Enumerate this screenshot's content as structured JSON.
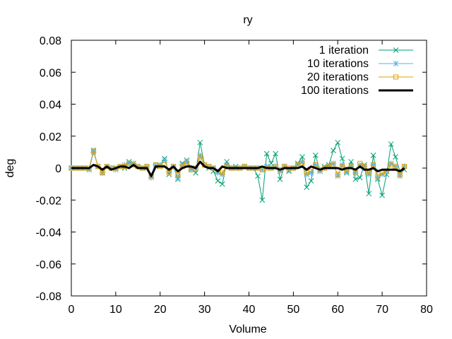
{
  "chart_data": {
    "type": "line",
    "title": "ry",
    "xlabel": "Volume",
    "ylabel": "deg",
    "xlim": [
      0,
      80
    ],
    "ylim": [
      -0.08,
      0.08
    ],
    "x_ticks": [
      "0",
      "10",
      "20",
      "30",
      "40",
      "50",
      "60",
      "70",
      "80"
    ],
    "y_ticks": [
      "-0.08",
      "-0.06",
      "-0.04",
      "-0.02",
      "0",
      "0.02",
      "0.04",
      "0.06",
      "0.08"
    ],
    "grid": false,
    "legend_position": "top-right",
    "x": [
      0,
      1,
      2,
      3,
      4,
      5,
      6,
      7,
      8,
      9,
      10,
      11,
      12,
      13,
      14,
      15,
      16,
      17,
      18,
      19,
      20,
      21,
      22,
      23,
      24,
      25,
      26,
      27,
      28,
      29,
      30,
      31,
      32,
      33,
      34,
      35,
      36,
      37,
      38,
      39,
      40,
      41,
      42,
      43,
      44,
      45,
      46,
      47,
      48,
      49,
      50,
      51,
      52,
      53,
      54,
      55,
      56,
      57,
      58,
      59,
      60,
      61,
      62,
      63,
      64,
      65,
      66,
      67,
      68,
      69,
      70,
      71,
      72,
      73,
      74,
      75
    ],
    "series": [
      {
        "name": "1 iteration",
        "color": "#009e73",
        "marker": "x",
        "values": [
          0.0,
          0.0,
          0.0,
          0.0,
          -0.001,
          0.011,
          0.001,
          -0.003,
          0.001,
          0.0,
          0.0,
          0.001,
          0.0,
          0.004,
          0.003,
          0.001,
          0.0,
          0.0,
          -0.005,
          0.001,
          0.002,
          0.006,
          -0.004,
          0.001,
          -0.007,
          0.003,
          0.005,
          0.0,
          -0.003,
          0.016,
          0.002,
          0.0,
          -0.002,
          -0.008,
          -0.01,
          0.004,
          0.0,
          0.001,
          0.0,
          0.001,
          0.0,
          0.0,
          -0.005,
          -0.02,
          0.009,
          0.003,
          0.009,
          -0.007,
          0.001,
          -0.002,
          0.0,
          0.003,
          0.007,
          -0.012,
          -0.008,
          0.008,
          -0.002,
          0.001,
          0.002,
          0.011,
          0.016,
          0.006,
          -0.003,
          0.004,
          -0.007,
          -0.006,
          0.002,
          -0.016,
          0.008,
          -0.007,
          -0.017,
          -0.004,
          0.015,
          0.007,
          -0.002,
          -0.001
        ]
      },
      {
        "name": "10 iterations",
        "color": "#56b4e9",
        "marker": "*",
        "values": [
          0.0,
          0.0,
          0.0,
          0.0,
          -0.001,
          0.01,
          0.001,
          -0.003,
          0.001,
          0.0,
          -0.001,
          0.001,
          0.002,
          0.003,
          0.003,
          0.001,
          0.0,
          0.001,
          -0.006,
          0.002,
          0.002,
          0.005,
          -0.002,
          0.001,
          -0.006,
          0.002,
          0.004,
          -0.001,
          0.0,
          0.008,
          0.002,
          0.001,
          0.0,
          -0.003,
          -0.004,
          0.002,
          0.0,
          0.0,
          0.0,
          0.001,
          0.0,
          0.0,
          0.0,
          -0.001,
          0.001,
          0.0,
          0.001,
          -0.002,
          0.001,
          -0.001,
          0.0,
          0.002,
          0.004,
          -0.004,
          -0.003,
          0.002,
          -0.002,
          0.0,
          0.001,
          0.003,
          -0.005,
          0.002,
          -0.002,
          0.001,
          -0.003,
          0.002,
          0.001,
          -0.004,
          0.002,
          -0.006,
          -0.004,
          -0.002,
          0.003,
          0.001,
          -0.005,
          0.001
        ]
      },
      {
        "name": "20 iterations",
        "color": "#e69f00",
        "marker": "square",
        "values": [
          0.0,
          0.0,
          0.0,
          0.0,
          0.0,
          0.011,
          0.001,
          -0.003,
          0.001,
          0.0,
          0.0,
          0.001,
          0.001,
          0.003,
          0.002,
          0.001,
          0.0,
          0.001,
          -0.005,
          0.002,
          0.001,
          0.002,
          -0.003,
          0.001,
          -0.004,
          0.001,
          0.003,
          -0.001,
          0.0,
          0.007,
          0.002,
          0.001,
          0.0,
          -0.002,
          -0.003,
          0.001,
          0.0,
          0.0,
          0.0,
          0.001,
          0.0,
          0.0,
          0.0,
          -0.001,
          0.0,
          0.0,
          0.001,
          -0.001,
          0.001,
          0.0,
          0.0,
          0.002,
          0.003,
          -0.003,
          -0.002,
          0.002,
          -0.001,
          0.0,
          0.001,
          0.002,
          -0.004,
          0.001,
          -0.002,
          0.001,
          -0.003,
          0.003,
          0.001,
          -0.003,
          0.002,
          -0.005,
          -0.003,
          -0.002,
          0.002,
          0.001,
          -0.004,
          0.001
        ]
      },
      {
        "name": "100 iterations",
        "color": "#000000",
        "marker": "none",
        "values": [
          0.0,
          0.0,
          0.0,
          0.0,
          0.0,
          0.002,
          0.001,
          -0.001,
          0.001,
          -0.001,
          0.0,
          0.001,
          0.001,
          0.0,
          0.002,
          0.0,
          0.0,
          0.0,
          -0.005,
          0.001,
          0.001,
          0.001,
          -0.001,
          0.001,
          -0.002,
          0.0,
          0.001,
          0.001,
          0.0,
          0.004,
          0.001,
          0.0,
          0.0,
          -0.002,
          0.001,
          0.0,
          0.0,
          0.0,
          0.0,
          0.0,
          0.0,
          0.0,
          0.0,
          0.001,
          0.0,
          0.0,
          0.0,
          -0.001,
          0.0,
          0.0,
          0.0,
          0.0,
          0.001,
          -0.001,
          0.001,
          0.0,
          -0.001,
          0.0,
          0.0,
          0.0,
          0.0,
          -0.001,
          0.0,
          0.0,
          -0.001,
          0.001,
          -0.001,
          -0.001,
          0.0,
          -0.002,
          -0.001,
          -0.001,
          -0.001,
          -0.001,
          -0.002,
          0.0
        ]
      }
    ]
  }
}
